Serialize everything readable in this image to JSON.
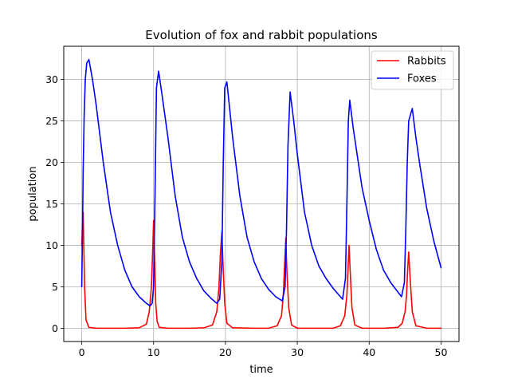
{
  "chart_data": {
    "type": "line",
    "title": "Evolution of fox and rabbit populations",
    "xlabel": "time",
    "ylabel": "population",
    "xlim": [
      -2.5,
      52.5
    ],
    "ylim": [
      -1.6,
      34.0
    ],
    "xticks": [
      0,
      10,
      20,
      30,
      40,
      50
    ],
    "yticks": [
      0,
      5,
      10,
      15,
      20,
      25,
      30
    ],
    "grid": true,
    "legend_position": "top-right",
    "series": [
      {
        "name": "Rabbits",
        "color": "#ff0000",
        "x": [
          0,
          0.2,
          0.4,
          0.6,
          1.0,
          2,
          4,
          6,
          8,
          9.0,
          9.4,
          9.7,
          9.9,
          10.0,
          10.15,
          10.3,
          10.5,
          10.8,
          12,
          15,
          17,
          18.2,
          18.8,
          19.1,
          19.3,
          19.5,
          19.65,
          19.9,
          20.2,
          21,
          24,
          26,
          27.2,
          27.8,
          28.05,
          28.25,
          28.4,
          28.55,
          28.8,
          29.2,
          30,
          33,
          35,
          36.0,
          36.6,
          36.9,
          37.05,
          37.2,
          37.35,
          37.6,
          38.0,
          39,
          42,
          44,
          44.6,
          45.0,
          45.2,
          45.35,
          45.5,
          45.7,
          46.0,
          46.5,
          48,
          50
        ],
        "y": [
          10,
          14,
          5,
          1,
          0.1,
          0,
          0,
          0,
          0.05,
          0.5,
          2,
          5,
          10,
          13,
          8,
          3,
          0.8,
          0.1,
          0,
          0,
          0.05,
          0.4,
          2,
          5,
          9,
          11.6,
          8,
          3,
          0.6,
          0.05,
          0,
          0,
          0.3,
          1.5,
          4,
          8,
          10.9,
          7,
          2.5,
          0.4,
          0,
          0,
          0,
          0.3,
          1.5,
          4,
          7,
          10,
          7,
          2.5,
          0.4,
          0,
          0,
          0.1,
          0.6,
          2,
          4,
          7,
          9.2,
          6,
          2,
          0.3,
          0,
          0
        ]
      },
      {
        "name": "Foxes",
        "color": "#0000ff",
        "x": [
          0,
          0.1,
          0.2,
          0.35,
          0.5,
          0.7,
          1.0,
          1.5,
          2,
          3,
          4,
          5,
          6,
          7,
          8,
          9,
          9.5,
          9.8,
          10.0,
          10.2,
          10.4,
          10.7,
          11.2,
          12,
          13,
          14,
          15,
          16,
          17,
          18,
          18.8,
          19.2,
          19.5,
          19.7,
          19.9,
          20.2,
          21,
          22,
          23,
          24,
          25,
          26,
          27,
          27.9,
          28.3,
          28.5,
          28.7,
          29,
          29.5,
          30,
          31,
          32,
          33,
          34,
          35,
          36.3,
          36.7,
          36.9,
          37.1,
          37.3,
          37.8,
          39,
          40,
          41,
          42,
          43,
          44.5,
          44.9,
          45.1,
          45.3,
          45.5,
          46,
          46.5,
          47,
          48,
          49,
          50
        ],
        "y": [
          5,
          11,
          19,
          26,
          30,
          32,
          32.4,
          30,
          27,
          20,
          14,
          10,
          7,
          5,
          3.8,
          3,
          2.7,
          3,
          5,
          16,
          29,
          31,
          28,
          23,
          16,
          11,
          8,
          6,
          4.5,
          3.6,
          3.0,
          3.5,
          8,
          20,
          29,
          29.7,
          23,
          16,
          11,
          8,
          6,
          4.7,
          3.8,
          3.3,
          5,
          12,
          22,
          28.5,
          25,
          21,
          14,
          10,
          7.5,
          6,
          4.8,
          3.5,
          6,
          15,
          25,
          27.5,
          24,
          17,
          13,
          9.5,
          7,
          5.5,
          3.8,
          5.5,
          12,
          20,
          25,
          26.5,
          23,
          20,
          14.5,
          10.5,
          7.3
        ]
      }
    ]
  }
}
